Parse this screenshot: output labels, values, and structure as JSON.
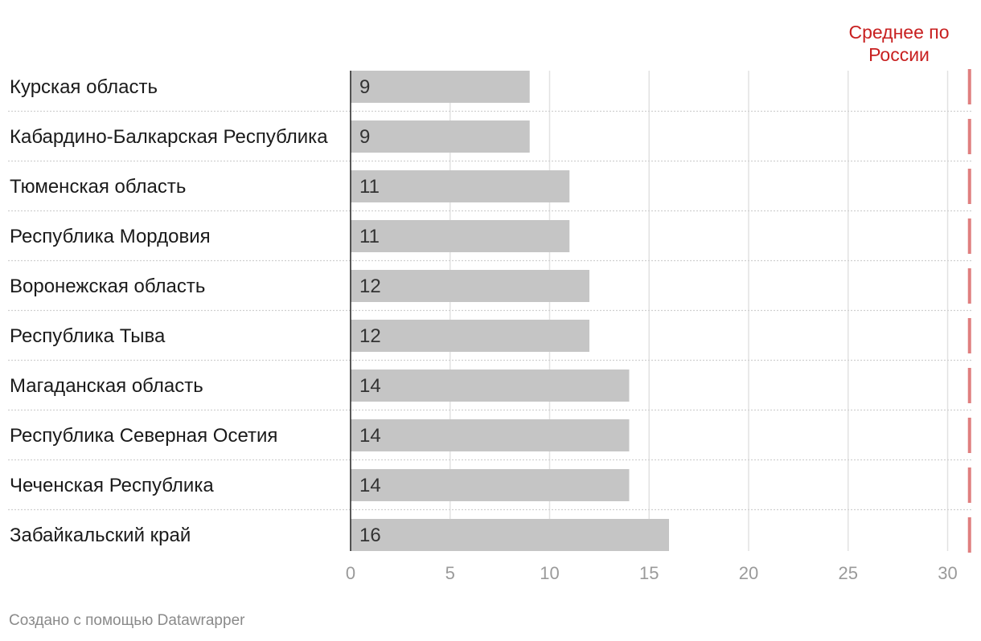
{
  "chart_data": {
    "type": "bar",
    "orientation": "horizontal",
    "categories": [
      "Курская область",
      "Кабардино-Балкарская Республика",
      "Тюменская область",
      "Республика Мордовия",
      "Воронежская область",
      "Республика Тыва",
      "Магаданская область",
      "Республика Северная Осетия",
      "Чеченская Республика",
      "Забайкальский край"
    ],
    "values": [
      9,
      9,
      11,
      11,
      12,
      12,
      14,
      14,
      14,
      16
    ],
    "xlim": [
      0,
      31
    ],
    "xticks": [
      0,
      5,
      10,
      15,
      20,
      25,
      30
    ],
    "grid": true,
    "reference_line": {
      "label_lines": [
        "Среднее по",
        "России"
      ],
      "value": 31.1
    },
    "colors": {
      "bar": "#c5c5c5",
      "reference": "#e07f7f",
      "reference_label": "#c82020",
      "grid": "#e2e2e2"
    }
  },
  "footer": {
    "credit": "Создано с помощью Datawrapper"
  }
}
